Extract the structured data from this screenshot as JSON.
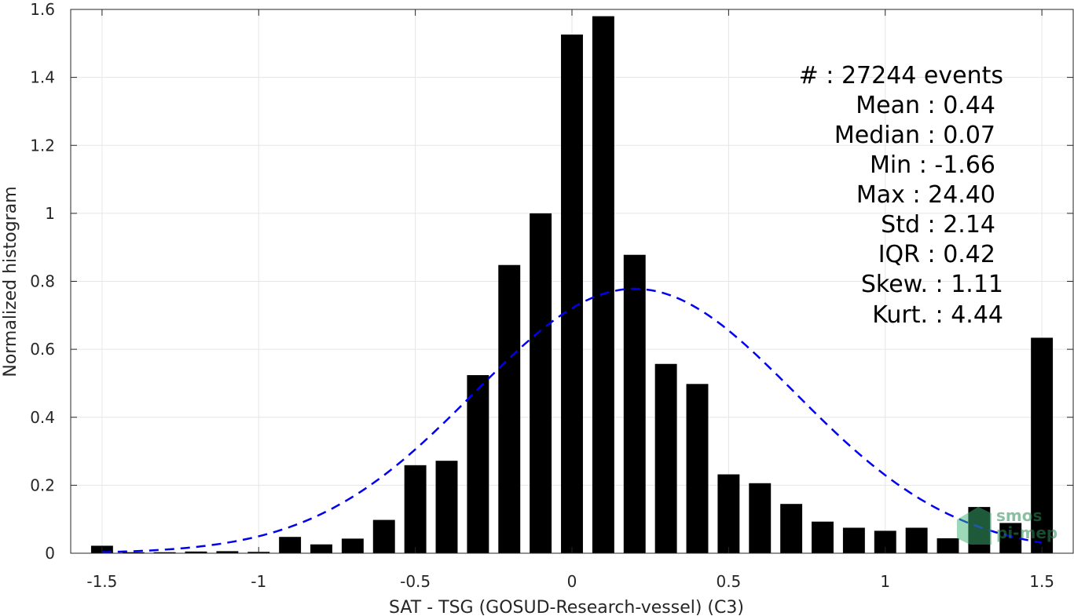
{
  "chart_data": {
    "type": "bar",
    "xlabel": "SAT - TSG (GOSUD-Research-vessel) (C3)",
    "ylabel": "Normalized histogram",
    "xlim": [
      -1.6,
      1.6
    ],
    "ylim": [
      0,
      1.6
    ],
    "xticks": [
      -1.5,
      -1,
      -0.5,
      0,
      0.5,
      1,
      1.5
    ],
    "xtick_labels": [
      "-1.5",
      "-1",
      "-0.5",
      "0",
      "0.5",
      "1",
      "1.5"
    ],
    "yticks": [
      0,
      0.2,
      0.4,
      0.6,
      0.8,
      1,
      1.2,
      1.4,
      1.6
    ],
    "ytick_labels": [
      "0",
      "0.2",
      "0.4",
      "0.6",
      "0.8",
      "1",
      "1.2",
      "1.4",
      "1.6"
    ],
    "grid": true,
    "bar_color": "#000000",
    "bin_width": 0.1,
    "x": [
      -1.5,
      -1.4,
      -1.3,
      -1.2,
      -1.1,
      -1.0,
      -0.9,
      -0.8,
      -0.7,
      -0.6,
      -0.5,
      -0.4,
      -0.3,
      -0.2,
      -0.1,
      0.0,
      0.1,
      0.2,
      0.3,
      0.4,
      0.5,
      0.6,
      0.7,
      0.8,
      0.9,
      1.0,
      1.1,
      1.2,
      1.3,
      1.4,
      1.5
    ],
    "values": [
      0.022,
      0.003,
      0.003,
      0.005,
      0.006,
      0.004,
      0.048,
      0.026,
      0.043,
      0.098,
      0.259,
      0.272,
      0.524,
      0.848,
      1.0,
      1.526,
      1.58,
      0.878,
      0.557,
      0.498,
      0.232,
      0.206,
      0.145,
      0.093,
      0.075,
      0.066,
      0.075,
      0.044,
      0.136,
      0.089,
      0.634
    ],
    "fit_curve": {
      "style": "dashed",
      "color": "#0000ee",
      "mean": 0.2,
      "peak": 0.778,
      "x_range": [
        -1.5,
        1.5
      ],
      "sigma": 0.512
    },
    "stats": {
      "count": "#  : 27244 events",
      "mean": "Mean : 0.44",
      "median": "Median : 0.07",
      "min": "Min : -1.66",
      "max": "Max : 24.40",
      "std": "Std : 2.14",
      "iqr": "IQR : 0.42",
      "skew": "Skew. : 1.11",
      "kurt": "Kurt. : 4.44"
    },
    "watermark": {
      "line1": "smos",
      "line2": "pi-mep",
      "color": "#2e8b57"
    }
  }
}
